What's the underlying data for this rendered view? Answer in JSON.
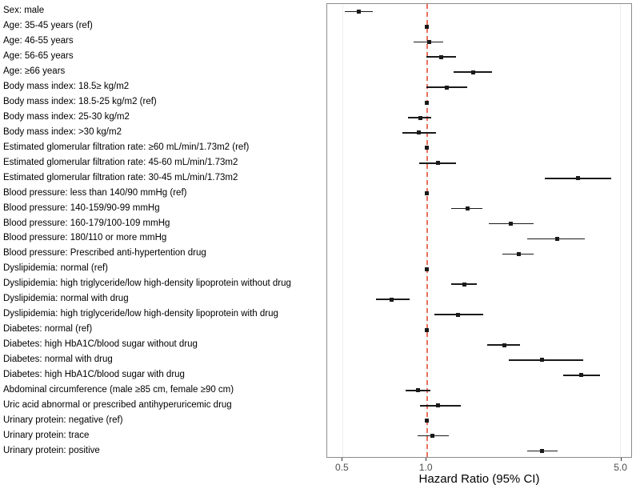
{
  "chart_data": {
    "type": "forest",
    "title": "",
    "xlabel": "Hazard Ratio (95% CI)",
    "x_scale": "log",
    "x_domain": [
      0.44,
      5.5
    ],
    "x_ticks": [
      0.5,
      1.0,
      5.0
    ],
    "x_tick_labels": [
      "0.5",
      "1.0",
      "5.0"
    ],
    "reference_line": 1.0,
    "colors": {
      "point": "#1a1a1a",
      "ci": "#1a1a1a",
      "reference": "#e8432e",
      "panel_border": "#8c8c8c",
      "grid": "#efefef",
      "tick_text": "#4d4d4d",
      "label_text": "#000000"
    },
    "rows": [
      {
        "label": "Sex: male",
        "hr": 0.57,
        "lo": 0.51,
        "hi": 0.64,
        "ref": false
      },
      {
        "label": "Age: 35-45 years (ref)",
        "hr": 1.0,
        "lo": 1.0,
        "hi": 1.0,
        "ref": true
      },
      {
        "label": "Age: 46-55 years",
        "hr": 1.02,
        "lo": 0.9,
        "hi": 1.15,
        "ref": false
      },
      {
        "label": "Age: 56-65 years",
        "hr": 1.13,
        "lo": 1.0,
        "hi": 1.28,
        "ref": false
      },
      {
        "label": "Age: ≥66 years",
        "hr": 1.47,
        "lo": 1.25,
        "hi": 1.72,
        "ref": false
      },
      {
        "label": "Body mass index: 18.5≥ kg/m2",
        "hr": 1.18,
        "lo": 1.0,
        "hi": 1.4,
        "ref": false
      },
      {
        "label": "Body mass index: 18.5-25 kg/m2 (ref)",
        "hr": 1.0,
        "lo": 1.0,
        "hi": 1.0,
        "ref": true
      },
      {
        "label": "Body mass index: 25-30 kg/m2",
        "hr": 0.95,
        "lo": 0.86,
        "hi": 1.04,
        "ref": false
      },
      {
        "label": "Body mass index: >30 kg/m2",
        "hr": 0.94,
        "lo": 0.82,
        "hi": 1.08,
        "ref": false
      },
      {
        "label": "Estimated glomerular filtration rate: ≥60 mL/min/1.73m2 (ref)",
        "hr": 1.0,
        "lo": 1.0,
        "hi": 1.0,
        "ref": true
      },
      {
        "label": "Estimated glomerular filtration rate: 45-60 mL/min/1.73m2",
        "hr": 1.1,
        "lo": 0.94,
        "hi": 1.28,
        "ref": false
      },
      {
        "label": "Estimated glomerular filtration rate: 30-45 mL/min/1.73m2",
        "hr": 3.5,
        "lo": 2.65,
        "hi": 4.6,
        "ref": false
      },
      {
        "label": "Blood pressure: less than 140/90 mmHg (ref)",
        "hr": 1.0,
        "lo": 1.0,
        "hi": 1.0,
        "ref": true
      },
      {
        "label": "Blood pressure: 140-159/90-99 mmHg",
        "hr": 1.4,
        "lo": 1.23,
        "hi": 1.59,
        "ref": false
      },
      {
        "label": "Blood pressure: 160-179/100-109 mmHg",
        "hr": 2.0,
        "lo": 1.67,
        "hi": 2.42,
        "ref": false
      },
      {
        "label": "Blood pressure: 180/110 or more mmHg",
        "hr": 2.95,
        "lo": 2.3,
        "hi": 3.7,
        "ref": false
      },
      {
        "label": "Blood pressure: Prescribed anti-hypertention drug",
        "hr": 2.14,
        "lo": 1.87,
        "hi": 2.42,
        "ref": false
      },
      {
        "label": "Dyslipidemia: normal (ref)",
        "hr": 1.0,
        "lo": 1.0,
        "hi": 1.0,
        "ref": true
      },
      {
        "label": "Dyslipidemia: high triglyceride/low high-density lipoprotein without drug",
        "hr": 1.37,
        "lo": 1.23,
        "hi": 1.52,
        "ref": false
      },
      {
        "label": "Dyslipidemia: normal with drug",
        "hr": 0.75,
        "lo": 0.66,
        "hi": 0.87,
        "ref": false
      },
      {
        "label": "Dyslipidemia: high triglyceride/low high-density lipoprotein with drug",
        "hr": 1.3,
        "lo": 1.07,
        "hi": 1.6,
        "ref": false
      },
      {
        "label": "Diabetes: normal (ref)",
        "hr": 1.0,
        "lo": 1.0,
        "hi": 1.0,
        "ref": true
      },
      {
        "label": "Diabetes: high HbA1C/blood sugar without drug",
        "hr": 1.9,
        "lo": 1.65,
        "hi": 2.17,
        "ref": false
      },
      {
        "label": "Diabetes: normal with drug",
        "hr": 2.6,
        "lo": 1.97,
        "hi": 3.65,
        "ref": false
      },
      {
        "label": "Diabetes: high HbA1C/blood sugar with drug",
        "hr": 3.6,
        "lo": 3.1,
        "hi": 4.2,
        "ref": false
      },
      {
        "label": "Abdominal circumference (male ≥85 cm, female ≥90 cm)",
        "hr": 0.93,
        "lo": 0.84,
        "hi": 1.03,
        "ref": false
      },
      {
        "label": "Uric acid abnormal or prescribed antihyperuricemic drug",
        "hr": 1.1,
        "lo": 0.95,
        "hi": 1.33,
        "ref": false
      },
      {
        "label": "Urinary protein: negative (ref)",
        "hr": 1.0,
        "lo": 1.0,
        "hi": 1.0,
        "ref": true
      },
      {
        "label": "Urinary protein: trace",
        "hr": 1.05,
        "lo": 0.93,
        "hi": 1.2,
        "ref": false
      },
      {
        "label": "Urinary protein: positive",
        "hr": 2.6,
        "lo": 2.3,
        "hi": 2.95,
        "ref": false
      }
    ]
  }
}
